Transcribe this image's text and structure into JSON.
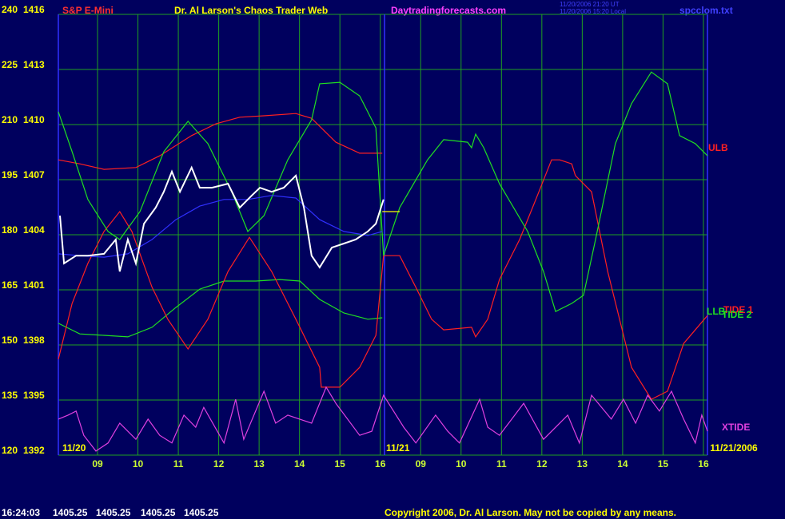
{
  "header": {
    "symbol": "S&P E-Mini",
    "site_title": "Dr. Al Larson's Chaos Trader Web",
    "url": "Daytradingforecasts.com",
    "timestamp_ut": "11/20/2006 21:20 UT",
    "timestamp_local": "11/20/2006 15:20 Local",
    "file": "spcclom.txt"
  },
  "footer": {
    "time": "16:24:03",
    "quotes": [
      1405.25,
      1405.25,
      1405.25,
      1405.25
    ],
    "copyright": "Copyright 2006, Dr. Al Larson. May not be copied by any means."
  },
  "chart_data": {
    "type": "line",
    "grid": true,
    "xlim": [
      8.03,
      24.1
    ],
    "xticks": [
      {
        "value": 9,
        "label": "09"
      },
      10,
      11,
      12,
      13,
      14,
      15,
      16,
      {
        "value": 17,
        "label": "09"
      },
      {
        "value": 18,
        "label": "10"
      },
      {
        "value": 19,
        "label": "11"
      },
      {
        "value": 20,
        "label": "12"
      },
      {
        "value": 21,
        "label": "13"
      },
      {
        "value": 22,
        "label": "14"
      },
      {
        "value": 23,
        "label": "15"
      },
      {
        "value": 24,
        "label": "16"
      }
    ],
    "ylim": [
      120,
      240
    ],
    "yticks": [
      120,
      135,
      150,
      165,
      180,
      195,
      210,
      225,
      240
    ],
    "y2lim": [
      1392,
      1416
    ],
    "y2ticks": [
      1392,
      1395,
      1398,
      1401,
      1404,
      1407,
      1410,
      1413,
      1416
    ],
    "date_labels": [
      "11/20",
      "11/21",
      "11/21/2006"
    ],
    "series": [
      {
        "name": "ULB",
        "color": "#ff2020",
        "x": [
          8.03,
          8.56,
          9.16,
          9.95,
          10.54,
          11.33,
          11.93,
          12.52,
          13.12,
          13.91,
          14.3,
          14.9,
          15.49,
          16.05
        ],
        "values": [
          200.4,
          199.3,
          197.8,
          198.3,
          201.5,
          207.0,
          210.2,
          212.0,
          212.4,
          213.0,
          211.7,
          205.2,
          202.2,
          202.2
        ]
      },
      {
        "name": "LLB",
        "color": "#20e020",
        "x": [
          8.03,
          8.56,
          9.16,
          9.75,
          10.35,
          10.94,
          11.53,
          12.13,
          12.92,
          13.51,
          14.01,
          14.5,
          15.1,
          15.69,
          16.05
        ],
        "values": [
          155.9,
          153.0,
          152.6,
          152.2,
          154.8,
          160.2,
          165.2,
          167.4,
          167.4,
          167.8,
          167.4,
          162.4,
          158.7,
          157.0,
          157.4
        ]
      },
      {
        "name": "TIDE 1",
        "color": "#ff2020",
        "x": [
          8.03,
          8.37,
          8.76,
          9.16,
          9.55,
          9.85,
          10.35,
          10.74,
          11.24,
          11.73,
          12.23,
          12.76,
          13.31,
          13.91,
          14.5,
          14.54,
          15.0,
          15.49,
          15.89,
          16.08,
          16.48,
          16.88,
          17.27,
          17.57,
          18.26,
          18.36,
          18.66,
          18.95,
          19.45,
          19.85,
          20.24,
          20.44,
          20.74,
          20.83,
          21.23,
          21.63,
          22.22,
          22.71,
          23.11,
          23.51,
          24.1
        ],
        "values": [
          146.1,
          161.3,
          172.2,
          180.9,
          186.3,
          180.9,
          165.7,
          157.0,
          148.9,
          157.0,
          170.0,
          179.3,
          170.0,
          157.0,
          143.9,
          138.5,
          138.5,
          143.9,
          152.6,
          174.3,
          174.3,
          165.7,
          157.0,
          154.1,
          154.8,
          152.2,
          157.0,
          167.8,
          178.7,
          189.6,
          200.4,
          200.4,
          199.3,
          196.1,
          191.7,
          170.0,
          143.9,
          135.2,
          137.4,
          150.4,
          158.0
        ]
      },
      {
        "name": "TIDE 2",
        "color": "#20e020",
        "x": [
          8.03,
          8.37,
          8.76,
          9.26,
          9.55,
          10.05,
          10.64,
          11.24,
          11.73,
          12.32,
          12.72,
          13.12,
          13.71,
          14.3,
          14.5,
          15.0,
          15.49,
          15.89,
          16.08,
          16.48,
          17.17,
          17.57,
          18.16,
          18.26,
          18.36,
          18.56,
          18.95,
          19.65,
          20.04,
          20.34,
          20.74,
          21.03,
          21.33,
          21.82,
          22.22,
          22.71,
          23.11,
          23.41,
          23.8,
          24.1
        ],
        "values": [
          213.5,
          202.6,
          189.6,
          180.9,
          178.7,
          186.3,
          202.6,
          210.9,
          204.8,
          191.7,
          180.9,
          185.2,
          200.4,
          211.3,
          221.1,
          221.5,
          217.8,
          209.1,
          174.3,
          187.4,
          200.4,
          205.9,
          205.2,
          203.7,
          207.4,
          203.7,
          193.9,
          180.9,
          170.0,
          159.1,
          161.3,
          163.5,
          178.7,
          204.8,
          215.7,
          224.3,
          221.1,
          207.0,
          204.8,
          201.5
        ]
      },
      {
        "name": "XTIDE",
        "color": "#e040e0",
        "x": [
          8.03,
          8.27,
          8.47,
          8.66,
          8.96,
          9.26,
          9.55,
          9.95,
          10.25,
          10.54,
          10.84,
          11.14,
          11.43,
          11.63,
          12.13,
          12.42,
          12.62,
          13.12,
          13.41,
          13.71,
          14.3,
          14.66,
          14.9,
          15.49,
          15.79,
          16.08,
          16.58,
          16.88,
          17.37,
          17.67,
          17.96,
          18.46,
          18.66,
          18.95,
          19.55,
          20.04,
          20.64,
          20.93,
          21.23,
          21.72,
          22.02,
          22.32,
          22.62,
          22.91,
          23.21,
          23.51,
          23.8,
          23.96,
          24.1
        ],
        "values": [
          129.8,
          130.9,
          132.0,
          125.4,
          121.1,
          123.3,
          128.7,
          124.3,
          129.8,
          125.4,
          123.3,
          130.9,
          127.6,
          133.0,
          123.3,
          135.2,
          124.3,
          137.4,
          128.7,
          130.9,
          128.7,
          138.5,
          134.1,
          125.4,
          126.5,
          136.3,
          127.6,
          123.3,
          130.9,
          126.5,
          123.3,
          135.2,
          127.6,
          125.4,
          134.1,
          124.3,
          130.9,
          123.3,
          136.3,
          129.8,
          135.2,
          128.7,
          136.3,
          132.0,
          137.4,
          129.8,
          123.3,
          130.9,
          126.5
        ]
      },
      {
        "color": "#3030ff",
        "x": [
          8.03,
          8.56,
          9.16,
          9.75,
          10.35,
          10.94,
          11.53,
          12.13,
          12.72,
          13.31,
          13.91,
          14.5,
          15.1,
          15.69,
          16.05
        ],
        "values": [
          174.8,
          174.3,
          173.9,
          174.8,
          178.7,
          184.1,
          187.8,
          189.6,
          189.6,
          190.7,
          190.0,
          184.1,
          180.9,
          179.8,
          180.9
        ]
      },
      {
        "color": "#ffffff",
        "x": [
          8.07,
          8.17,
          8.47,
          8.76,
          9.16,
          9.45,
          9.55,
          9.75,
          9.95,
          10.15,
          10.44,
          10.64,
          10.84,
          11.04,
          11.33,
          11.53,
          11.83,
          12.23,
          12.52,
          12.82,
          13.02,
          13.31,
          13.61,
          13.91,
          14.11,
          14.3,
          14.5,
          14.8,
          15.1,
          15.39,
          15.69,
          15.89,
          16.08
        ],
        "values": [
          185.2,
          172.2,
          174.3,
          174.3,
          174.8,
          178.7,
          170.0,
          178.7,
          172.2,
          183.0,
          187.4,
          191.7,
          197.2,
          191.7,
          198.3,
          192.8,
          192.8,
          193.9,
          187.4,
          190.7,
          192.8,
          191.7,
          192.8,
          196.1,
          187.4,
          174.3,
          171.1,
          176.5,
          177.6,
          178.7,
          180.9,
          183.0,
          189.6
        ]
      },
      {
        "color": "#ffff00",
        "x": [
          16.05,
          16.48
        ],
        "values": [
          186.3,
          186.3
        ]
      }
    ]
  }
}
